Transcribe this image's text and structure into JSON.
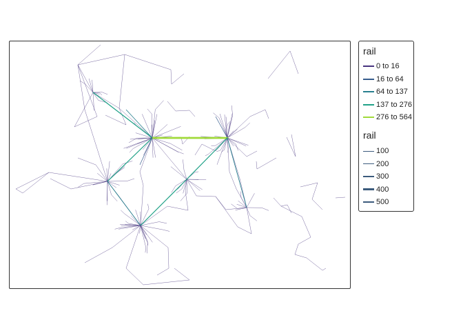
{
  "legend": {
    "color_title": "rail",
    "color_items": [
      {
        "label": "0 to 16",
        "color": "#46337e"
      },
      {
        "label": "16 to 64",
        "color": "#365c8d"
      },
      {
        "label": "64 to 137",
        "color": "#277f8e"
      },
      {
        "label": "137 to 276",
        "color": "#1fa187"
      },
      {
        "label": "276 to 564",
        "color": "#a0da39"
      }
    ],
    "width_title": "rail",
    "width_items": [
      {
        "label": "100",
        "value": 100
      },
      {
        "label": "200",
        "value": 200
      },
      {
        "label": "300",
        "value": 300
      },
      {
        "label": "400",
        "value": 400
      },
      {
        "label": "500",
        "value": 500
      }
    ],
    "width_color": "#3b5a7c"
  }
}
